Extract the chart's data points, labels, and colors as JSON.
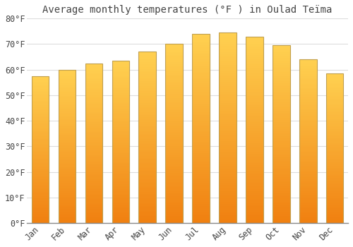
{
  "title": "Average monthly temperatures (°F ) in Oulad Teïma",
  "months": [
    "Jan",
    "Feb",
    "Mar",
    "Apr",
    "May",
    "Jun",
    "Jul",
    "Aug",
    "Sep",
    "Oct",
    "Nov",
    "Dec"
  ],
  "values": [
    57.5,
    60.0,
    62.5,
    63.5,
    67.0,
    70.0,
    74.0,
    74.5,
    73.0,
    69.5,
    64.0,
    58.5
  ],
  "bar_color_top": "#FFD050",
  "bar_color_bottom": "#F08010",
  "bar_edge_color": "#C0A050",
  "background_color": "#ffffff",
  "ylim": [
    0,
    80
  ],
  "yticks": [
    0,
    10,
    20,
    30,
    40,
    50,
    60,
    70,
    80
  ],
  "ytick_labels": [
    "0°F",
    "10°F",
    "20°F",
    "30°F",
    "40°F",
    "50°F",
    "60°F",
    "70°F",
    "80°F"
  ],
  "grid_color": "#dddddd",
  "text_color": "#444444",
  "font_family": "monospace",
  "title_fontsize": 10,
  "tick_fontsize": 8.5
}
